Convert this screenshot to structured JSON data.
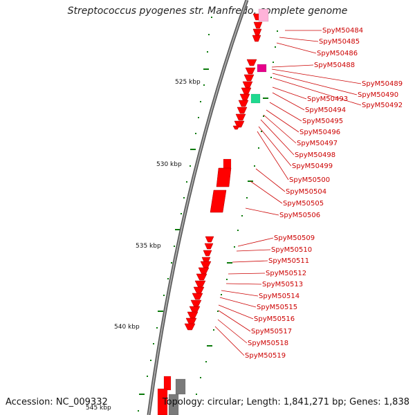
{
  "title": "Streptococcus pyogenes str. Manfredo, complete genome",
  "accession": "Accession: NC_009332",
  "summary": "Topology: circular; Length: 1,841,271 bp; Genes: 1,838",
  "colors": {
    "gene": "#ff0000",
    "backbone": "#808080",
    "tick": "#0a7a0a",
    "label": "#cc0000",
    "pink_feature": "#ffb3d9",
    "magenta_feature": "#e6008a",
    "teal_feature": "#1fd98f",
    "gray_feature": "#7a7a7a"
  },
  "scale_labels": [
    "525 kbp",
    "530 kbp",
    "535 kbp",
    "540 kbp",
    "545 kbp"
  ],
  "gene_labels": [
    "SpyM50484",
    "SpyM50485",
    "SpyM50486",
    "SpyM50488",
    "SpyM50489",
    "SpyM50490",
    "SpyM50492",
    "SpyM50493",
    "SpyM50494",
    "SpyM50495",
    "SpyM50496",
    "SpyM50497",
    "SpyM50498",
    "SpyM50499",
    "SpyM50500",
    "SpyM50504",
    "SpyM50505",
    "SpyM50506",
    "SpyM50509",
    "SpyM50510",
    "SpyM50511",
    "SpyM50512",
    "SpyM50513",
    "SpyM50514",
    "SpyM50515",
    "SpyM50516",
    "SpyM50517",
    "SpyM50518",
    "SpyM50519"
  ]
}
